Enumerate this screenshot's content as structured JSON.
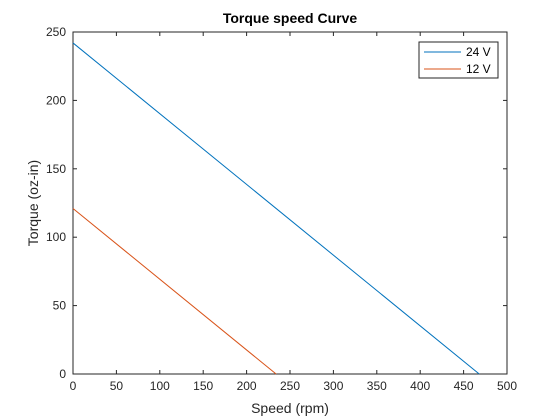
{
  "chart_data": {
    "type": "line",
    "title": "Torque speed Curve",
    "xlabel": "Speed (rpm)",
    "ylabel": "Torque (oz-in)",
    "xlim": [
      0,
      500
    ],
    "ylim": [
      0,
      250
    ],
    "xticks": [
      0,
      50,
      100,
      150,
      200,
      250,
      300,
      350,
      400,
      450,
      500
    ],
    "yticks": [
      0,
      50,
      100,
      150,
      200,
      250
    ],
    "grid": false,
    "legend_position": "top-right",
    "series": [
      {
        "name": "24 V",
        "color": "#0072bd",
        "x": [
          0,
          468
        ],
        "y": [
          242,
          0
        ]
      },
      {
        "name": "12 V",
        "color": "#d95319",
        "x": [
          0,
          234
        ],
        "y": [
          121,
          0
        ]
      }
    ]
  }
}
